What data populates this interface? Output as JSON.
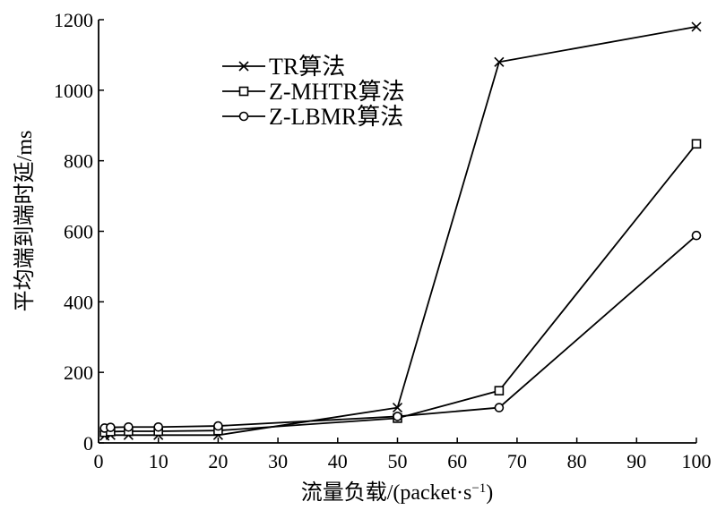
{
  "chart_data": {
    "type": "line",
    "xlabel_main": "流量负载/(packet·s",
    "xlabel_sup": "−1",
    "xlabel_close": ")",
    "ylabel": "平均端到端时延/ms",
    "xlim": [
      0,
      100
    ],
    "ylim": [
      0,
      1200
    ],
    "xticks": [
      0,
      10,
      20,
      30,
      40,
      50,
      60,
      70,
      80,
      90,
      100
    ],
    "yticks": [
      0,
      200,
      400,
      600,
      800,
      1000,
      1200
    ],
    "grid": false,
    "legend_position": "top-left",
    "series": [
      {
        "name": "TR算法",
        "marker": "x",
        "x": [
          1,
          2,
          5,
          10,
          20,
          50,
          67,
          100
        ],
        "y": [
          20,
          22,
          22,
          22,
          22,
          100,
          1080,
          1180
        ]
      },
      {
        "name": "Z-MHTR算法",
        "marker": "square",
        "x": [
          1,
          2,
          5,
          10,
          20,
          50,
          67,
          100
        ],
        "y": [
          30,
          32,
          33,
          33,
          35,
          70,
          148,
          848
        ]
      },
      {
        "name": "Z-LBMR算法",
        "marker": "circle",
        "x": [
          1,
          2,
          5,
          10,
          20,
          50,
          67,
          100
        ],
        "y": [
          42,
          44,
          45,
          45,
          48,
          75,
          100,
          588
        ]
      }
    ]
  }
}
